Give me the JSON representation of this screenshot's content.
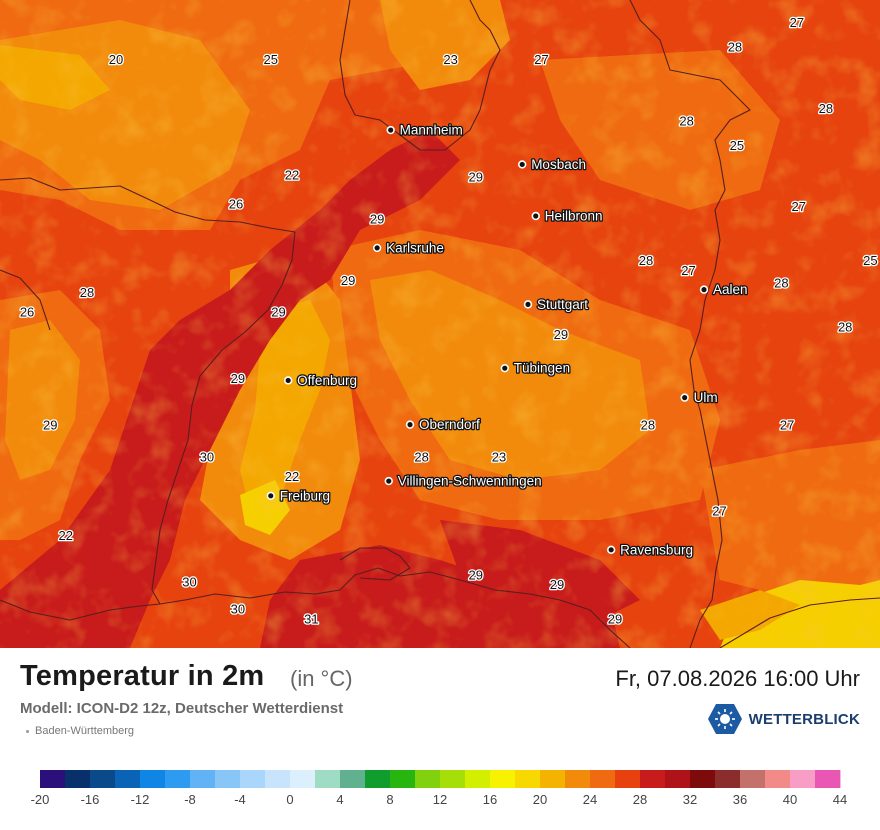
{
  "header": {
    "title": "Temperatur in 2m",
    "unit": "(in °C)",
    "model": "Modell: ICON-D2 12z, Deutscher Wetterdienst",
    "region": "Baden-Württemberg",
    "datetime": "Fr, 07.08.2026 16:00 Uhr",
    "brand": "WETTERBLICK"
  },
  "cities": [
    {
      "name": "Mannheim",
      "lon": 8.47,
      "lat": 49.49
    },
    {
      "name": "Mosbach",
      "lon": 9.15,
      "lat": 49.35
    },
    {
      "name": "Heilbronn",
      "lon": 9.22,
      "lat": 49.14
    },
    {
      "name": "Karlsruhe",
      "lon": 8.4,
      "lat": 49.01
    },
    {
      "name": "Stuttgart",
      "lon": 9.18,
      "lat": 48.78
    },
    {
      "name": "Aalen",
      "lon": 10.09,
      "lat": 48.84
    },
    {
      "name": "Tübingen",
      "lon": 9.06,
      "lat": 48.52
    },
    {
      "name": "Offenburg",
      "lon": 7.94,
      "lat": 48.47
    },
    {
      "name": "Ulm",
      "lon": 9.99,
      "lat": 48.4
    },
    {
      "name": "Oberndorf",
      "lon": 8.57,
      "lat": 48.29
    },
    {
      "name": "Villingen-Schwenningen",
      "lon": 8.46,
      "lat": 48.06
    },
    {
      "name": "Freiburg",
      "lon": 7.85,
      "lat": 48.0
    },
    {
      "name": "Ravensburg",
      "lon": 9.61,
      "lat": 47.78
    }
  ],
  "temperature_labels": [
    {
      "value": "20",
      "lon": 7.05,
      "lat": 49.78
    },
    {
      "value": "25",
      "lon": 7.85,
      "lat": 49.78
    },
    {
      "value": "23",
      "lon": 8.78,
      "lat": 49.78
    },
    {
      "value": "27",
      "lon": 9.25,
      "lat": 49.78
    },
    {
      "value": "27",
      "lon": 10.57,
      "lat": 49.93
    },
    {
      "value": "28",
      "lon": 10.25,
      "lat": 49.83
    },
    {
      "value": "28",
      "lon": 10.0,
      "lat": 49.53
    },
    {
      "value": "28",
      "lon": 10.72,
      "lat": 49.58
    },
    {
      "value": "25",
      "lon": 10.26,
      "lat": 49.43
    },
    {
      "value": "22",
      "lon": 7.96,
      "lat": 49.31
    },
    {
      "value": "29",
      "lon": 8.91,
      "lat": 49.3
    },
    {
      "value": "26",
      "lon": 7.67,
      "lat": 49.19
    },
    {
      "value": "29",
      "lon": 8.4,
      "lat": 49.13
    },
    {
      "value": "27",
      "lon": 10.58,
      "lat": 49.18
    },
    {
      "value": "28",
      "lon": 9.79,
      "lat": 48.96
    },
    {
      "value": "27",
      "lon": 10.01,
      "lat": 48.92
    },
    {
      "value": "25",
      "lon": 10.95,
      "lat": 48.96
    },
    {
      "value": "29",
      "lon": 8.25,
      "lat": 48.88
    },
    {
      "value": "28",
      "lon": 6.9,
      "lat": 48.83
    },
    {
      "value": "28",
      "lon": 10.49,
      "lat": 48.87
    },
    {
      "value": "26",
      "lon": 6.59,
      "lat": 48.75
    },
    {
      "value": "29",
      "lon": 7.89,
      "lat": 48.75
    },
    {
      "value": "29",
      "lon": 9.35,
      "lat": 48.66
    },
    {
      "value": "28",
      "lon": 10.82,
      "lat": 48.69
    },
    {
      "value": "29",
      "lon": 7.68,
      "lat": 48.48
    },
    {
      "value": "29",
      "lon": 6.71,
      "lat": 48.29
    },
    {
      "value": "28",
      "lon": 9.8,
      "lat": 48.29
    },
    {
      "value": "27",
      "lon": 10.52,
      "lat": 48.29
    },
    {
      "value": "30",
      "lon": 7.52,
      "lat": 48.16
    },
    {
      "value": "28",
      "lon": 8.63,
      "lat": 48.16
    },
    {
      "value": "23",
      "lon": 9.03,
      "lat": 48.16
    },
    {
      "value": "22",
      "lon": 7.96,
      "lat": 48.08
    },
    {
      "value": "27",
      "lon": 10.17,
      "lat": 47.94
    },
    {
      "value": "22",
      "lon": 6.79,
      "lat": 47.84
    },
    {
      "value": "29",
      "lon": 8.91,
      "lat": 47.68
    },
    {
      "value": "29",
      "lon": 9.33,
      "lat": 47.64
    },
    {
      "value": "30",
      "lon": 7.43,
      "lat": 47.65
    },
    {
      "value": "30",
      "lon": 7.68,
      "lat": 47.54
    },
    {
      "value": "31",
      "lon": 8.06,
      "lat": 47.5
    },
    {
      "value": "29",
      "lon": 9.63,
      "lat": 47.5
    }
  ],
  "legend": {
    "ticks": [
      "-20",
      "-16",
      "-12",
      "-8",
      "-4",
      "0",
      "4",
      "8",
      "12",
      "16",
      "20",
      "24",
      "28",
      "32",
      "36",
      "40",
      "44"
    ],
    "colors": [
      "#2b0f7a",
      "#08306b",
      "#0b4a8a",
      "#0a64b5",
      "#0f86e6",
      "#2d9bf0",
      "#62b3f6",
      "#88c6f8",
      "#a9d6fa",
      "#c8e4fc",
      "#dceffd",
      "#9fdcc4",
      "#61b08f",
      "#0f9e2d",
      "#27b50f",
      "#82d10f",
      "#a6df08",
      "#d2ef00",
      "#f6f200",
      "#f7d800",
      "#f4b300",
      "#f28a0c",
      "#ef6a10",
      "#e6410f",
      "#c81b1b",
      "#b0121a",
      "#7e0b0b",
      "#8b2d2d",
      "#c4706b",
      "#f28a88",
      "#f79dc6",
      "#e956b4"
    ]
  },
  "map_colors": {
    "t20": "#f6cf00",
    "t22": "#f4a700",
    "t24": "#f28a0c",
    "t26": "#ef6a10",
    "t28": "#e6430f",
    "t30": "#c81b1b",
    "border": "#5a1e1e"
  }
}
